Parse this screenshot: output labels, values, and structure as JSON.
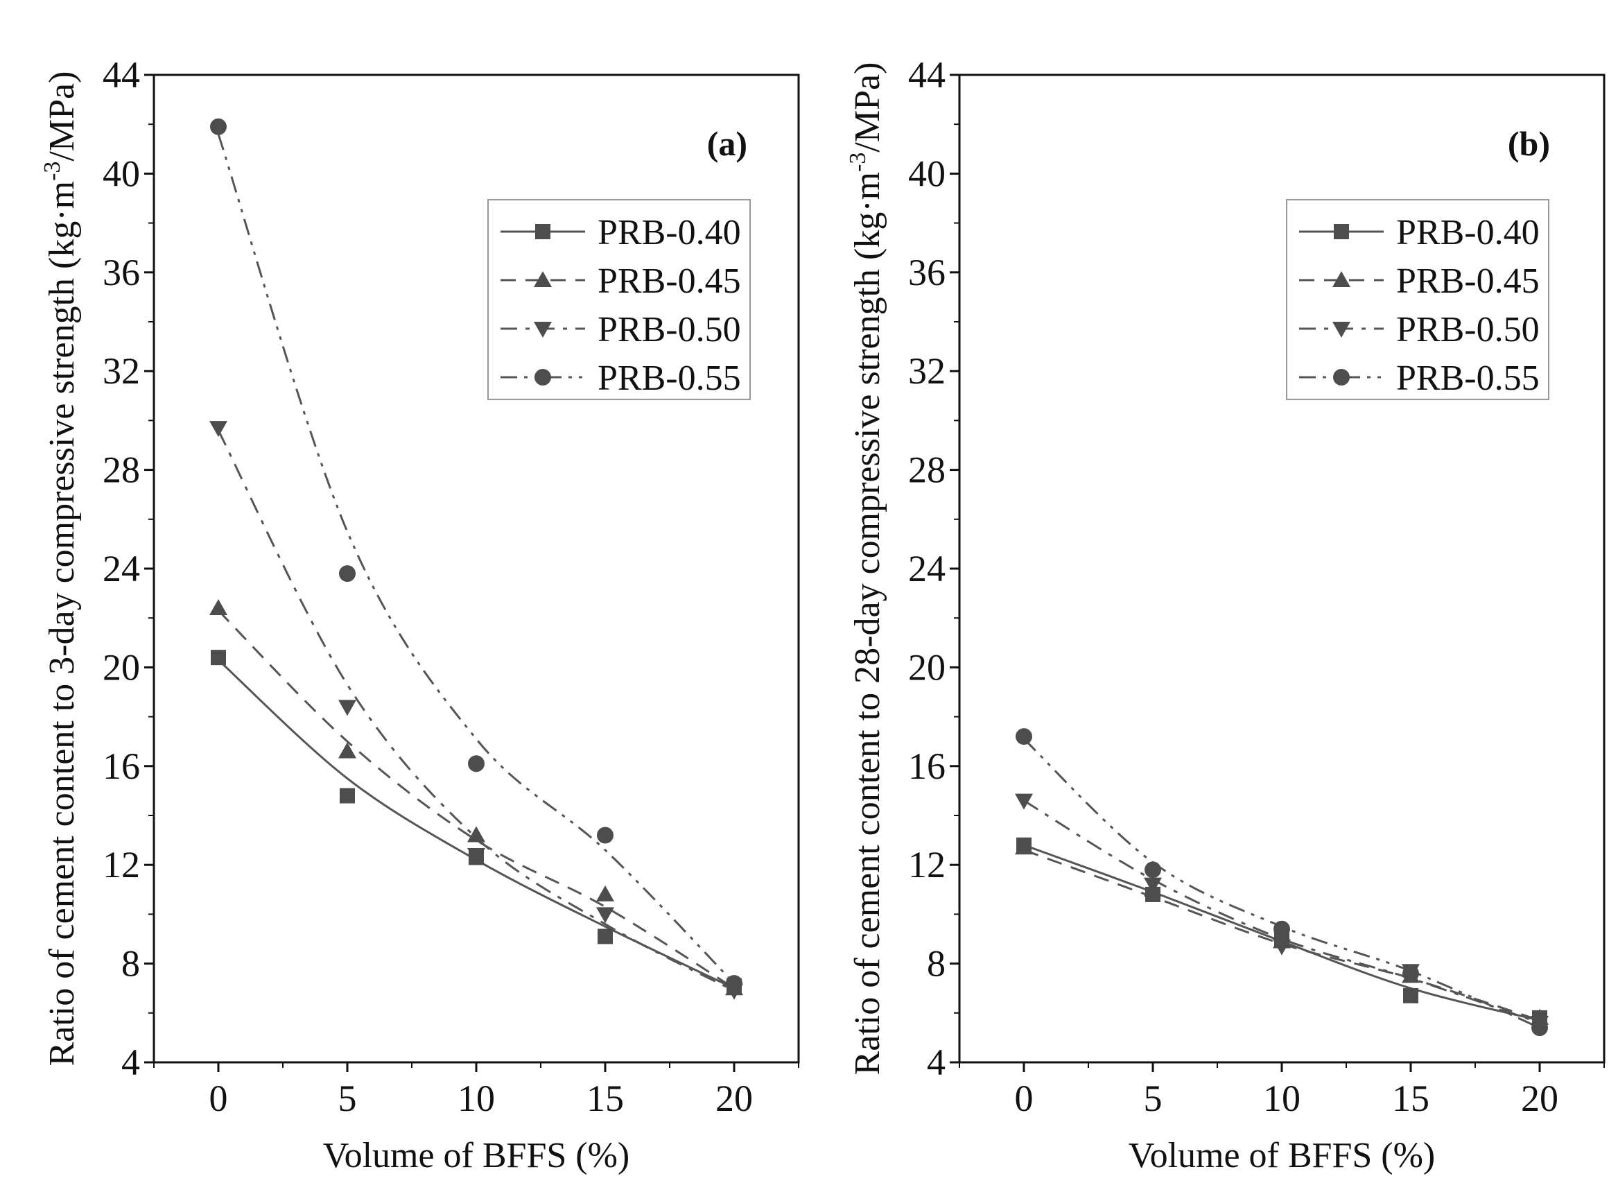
{
  "chart_data": [
    {
      "type": "line",
      "panel_label": "(a)",
      "xlabel": "Volume of BFFS (%)",
      "ylabel_main": "Ratio of cement content to 3-day compressive strength (kg·m",
      "ylabel_sup": "-3",
      "ylabel_end": "/MPa)",
      "x": [
        0,
        5,
        10,
        15,
        20
      ],
      "x_ticks": [
        "0",
        "5",
        "10",
        "15",
        "20"
      ],
      "xlim": [
        -2.5,
        22.5
      ],
      "ylim": [
        4,
        44
      ],
      "y_ticks": [
        "4",
        "8",
        "12",
        "16",
        "20",
        "24",
        "28",
        "32",
        "36",
        "40",
        "44"
      ],
      "legend_position": "upper-right",
      "series": [
        {
          "name": "PRB-0.40",
          "marker": "square",
          "dash": "solid",
          "values": [
            20.4,
            14.8,
            12.3,
            9.1,
            7.1
          ],
          "fit": [
            20.3,
            15.5,
            12.2,
            9.5,
            7.0
          ]
        },
        {
          "name": "PRB-0.45",
          "marker": "triangle-up",
          "dash": "dashed",
          "values": [
            22.4,
            16.6,
            13.2,
            10.8,
            7.0
          ],
          "fit": [
            22.3,
            17.0,
            13.0,
            10.3,
            7.0
          ]
        },
        {
          "name": "PRB-0.50",
          "marker": "triangle-down",
          "dash": "dashdot",
          "values": [
            29.7,
            18.4,
            12.4,
            10.0,
            6.9
          ],
          "fit": [
            29.6,
            19.3,
            13.1,
            9.6,
            6.9
          ]
        },
        {
          "name": "PRB-0.55",
          "marker": "circle",
          "dash": "dashdotdot",
          "values": [
            41.9,
            23.8,
            16.1,
            13.2,
            7.2
          ],
          "fit": [
            41.6,
            25.5,
            17.1,
            12.6,
            7.2
          ]
        }
      ]
    },
    {
      "type": "line",
      "panel_label": "(b)",
      "xlabel": "Volume of BFFS (%)",
      "ylabel_main": "Ratio of cement content to 28-day compressive strength (kg·m",
      "ylabel_sup": "-3",
      "ylabel_end": "/MPa)",
      "x": [
        0,
        5,
        10,
        15,
        20
      ],
      "x_ticks": [
        "0",
        "5",
        "10",
        "15",
        "20"
      ],
      "xlim": [
        -2.5,
        22.5
      ],
      "ylim": [
        4,
        44
      ],
      "y_ticks": [
        "4",
        "8",
        "12",
        "16",
        "20",
        "24",
        "28",
        "32",
        "36",
        "40",
        "44"
      ],
      "legend_position": "upper-right",
      "series": [
        {
          "name": "PRB-0.40",
          "marker": "square",
          "dash": "solid",
          "values": [
            12.8,
            10.8,
            9.0,
            6.7,
            5.8
          ],
          "fit": [
            12.8,
            10.9,
            8.9,
            7.0,
            5.7
          ]
        },
        {
          "name": "PRB-0.45",
          "marker": "triangle-up",
          "dash": "dashed",
          "values": [
            12.7,
            11.0,
            8.9,
            7.5,
            5.8
          ],
          "fit": [
            12.6,
            10.7,
            8.8,
            7.4,
            5.7
          ]
        },
        {
          "name": "PRB-0.50",
          "marker": "triangle-down",
          "dash": "dashdot",
          "values": [
            14.6,
            11.2,
            8.7,
            7.7,
            5.6
          ],
          "fit": [
            14.6,
            11.4,
            9.0,
            7.4,
            5.6
          ]
        },
        {
          "name": "PRB-0.55",
          "marker": "circle",
          "dash": "dashdotdot",
          "values": [
            17.2,
            11.8,
            9.4,
            7.6,
            5.4
          ],
          "fit": [
            17.1,
            12.1,
            9.5,
            7.7,
            5.4
          ]
        }
      ]
    }
  ],
  "colors": {
    "line": "#555555",
    "marker": "#4d4d4d",
    "axis": "#111111",
    "text": "#111111"
  }
}
